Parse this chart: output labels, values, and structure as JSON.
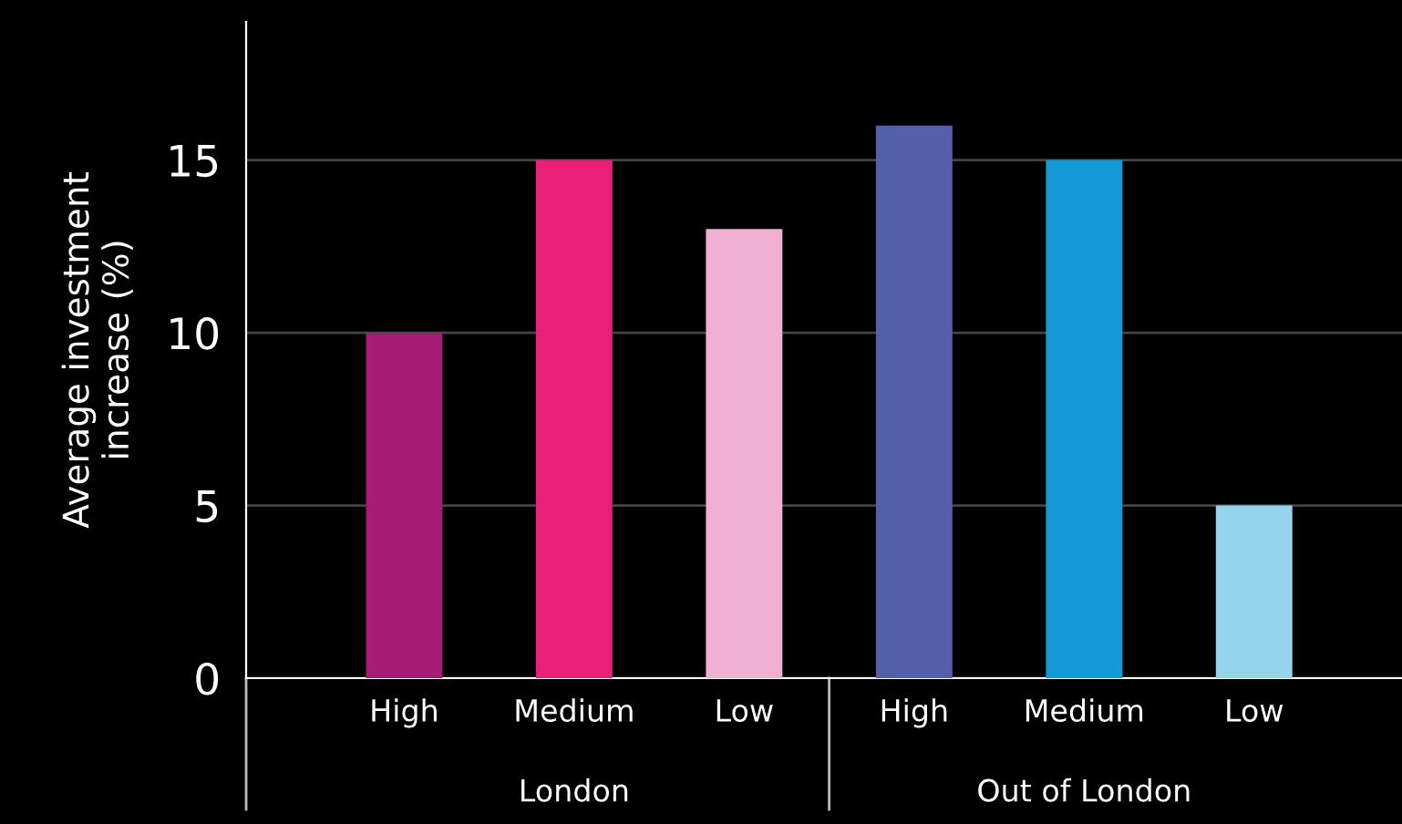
{
  "chart_data": {
    "type": "bar",
    "ylabel": "Average investment\nincrease (%)",
    "categories": [
      "High",
      "Medium",
      "Low",
      "High",
      "Medium",
      "Low"
    ],
    "values": [
      10,
      15,
      13,
      16,
      15,
      5
    ],
    "colors": [
      "#a51c74",
      "#e8207a",
      "#f0aed0",
      "#5160a8",
      "#139ad4",
      "#93d3ec"
    ],
    "ylim": [
      0,
      19
    ],
    "yticks": [
      0,
      5,
      10,
      15
    ],
    "grid": "y",
    "annotations": [
      "London",
      "Out of London"
    ]
  }
}
